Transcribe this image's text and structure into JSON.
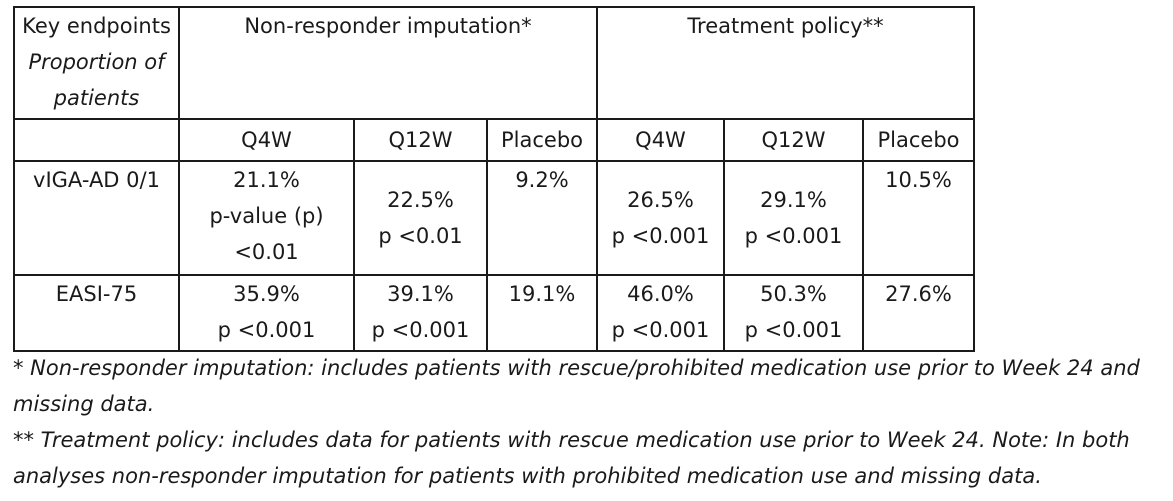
{
  "table": {
    "header": {
      "corner": {
        "line1": "Key endpoints",
        "line2": "Proportion of",
        "line3": "patients"
      },
      "groups": [
        "Non-responder imputation*",
        "Treatment policy**"
      ],
      "subheaders": [
        "Q4W",
        "Q12W",
        "Placebo",
        "Q4W",
        "Q12W",
        "Placebo"
      ]
    },
    "rows": [
      {
        "endpoint": "vIGA-AD 0/1",
        "cells": [
          {
            "value": "21.1%",
            "p_lines": [
              "p-value (p)",
              "<0.01"
            ]
          },
          {
            "value": "22.5%",
            "p_lines": [
              "p <0.01"
            ]
          },
          {
            "value": "9.2%",
            "p_lines": []
          },
          {
            "value": "26.5%",
            "p_lines": [
              "p <0.001"
            ]
          },
          {
            "value": "29.1%",
            "p_lines": [
              "p <0.001"
            ]
          },
          {
            "value": "10.5%",
            "p_lines": []
          }
        ]
      },
      {
        "endpoint": "EASI-75",
        "cells": [
          {
            "value": "35.9%",
            "p_lines": [
              "p <0.001"
            ]
          },
          {
            "value": "39.1%",
            "p_lines": [
              "p <0.001"
            ]
          },
          {
            "value": "19.1%",
            "p_lines": []
          },
          {
            "value": "46.0%",
            "p_lines": [
              "p <0.001"
            ]
          },
          {
            "value": "50.3%",
            "p_lines": [
              "p <0.001"
            ]
          },
          {
            "value": "27.6%",
            "p_lines": []
          }
        ]
      }
    ]
  },
  "footnotes": {
    "note1": "* Non-responder imputation: includes patients with rescue/prohibited medication use prior to Week 24 and missing data.",
    "note2": "** Treatment policy: includes data for patients with rescue medication use prior to Week 24. Note: In both analyses non-responder imputation for patients with prohibited medication use and missing data."
  }
}
